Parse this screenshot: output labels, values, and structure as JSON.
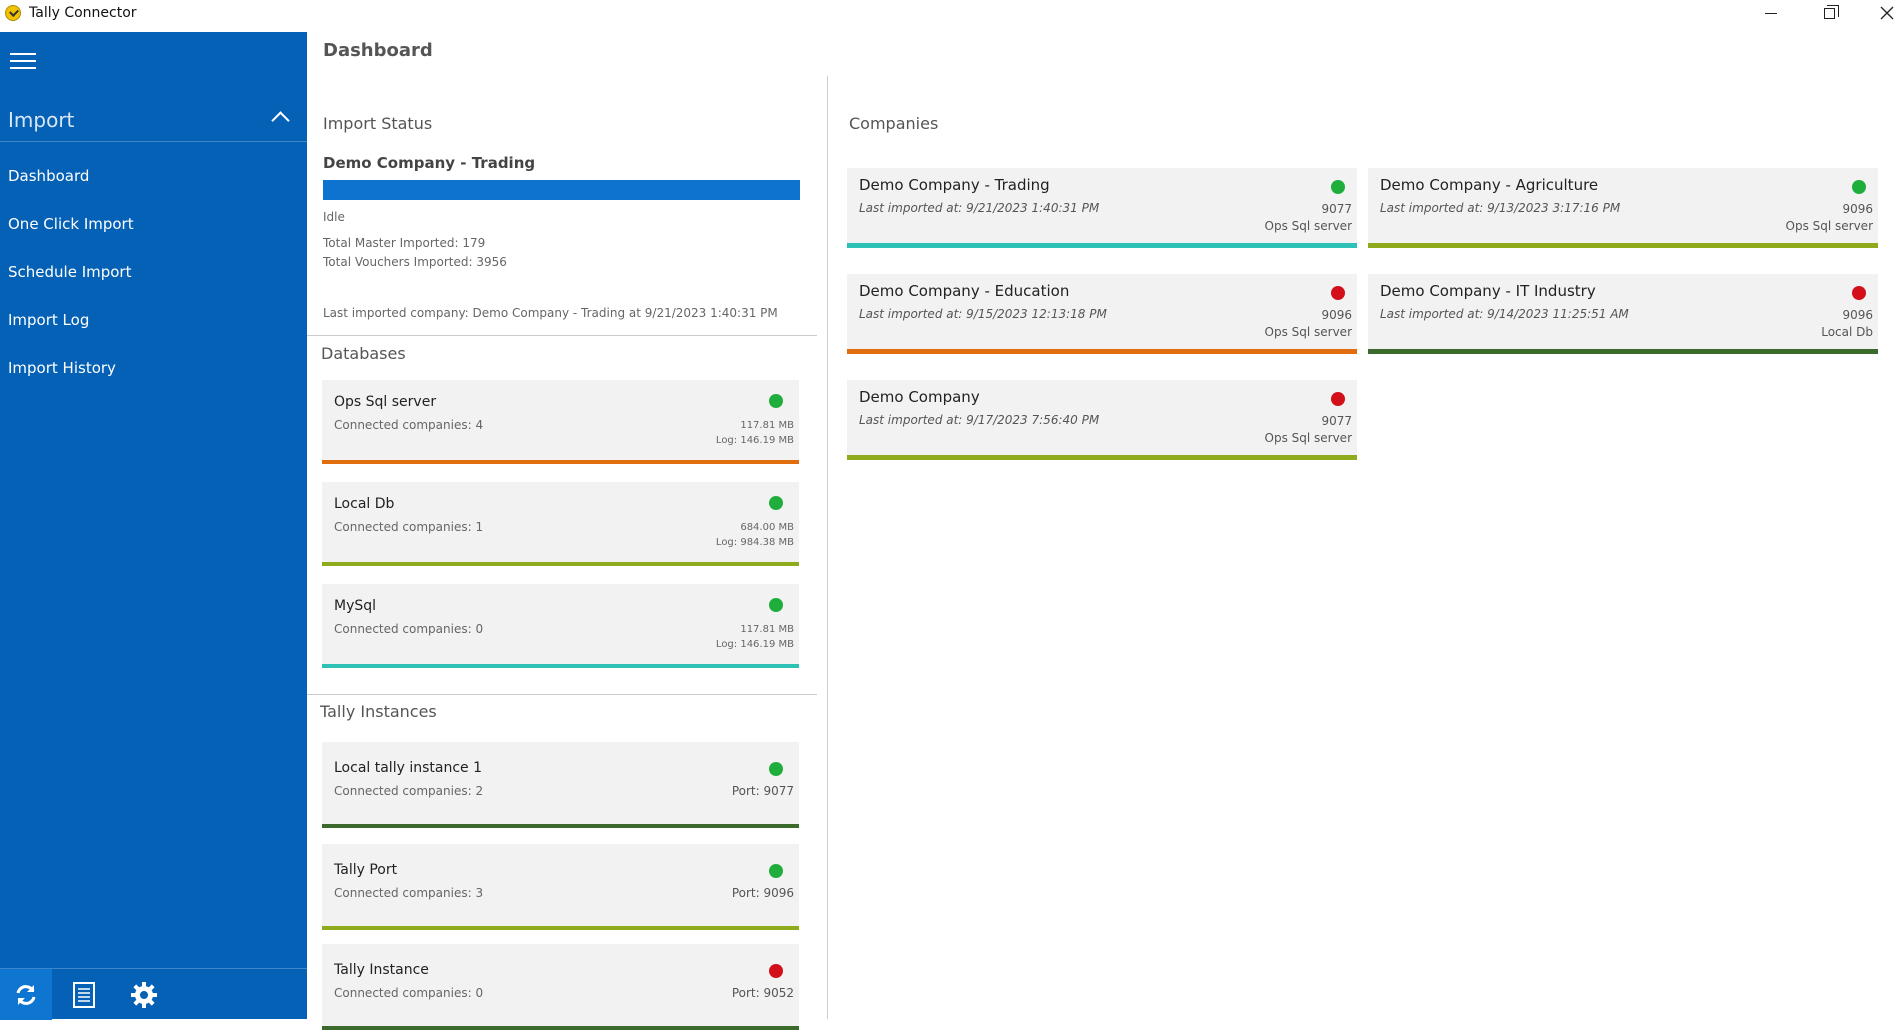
{
  "window": {
    "title": "Tally Connector"
  },
  "colors": {
    "sidebar": "#0561b5",
    "green": "#1fad3c",
    "red": "#d3101a",
    "teal": "#2ec1b6",
    "orange": "#e06d0e",
    "olive": "#8fab1d",
    "darkgreen": "#3c6a2c"
  },
  "sidebar": {
    "section": "Import",
    "items": [
      {
        "label": "Dashboard"
      },
      {
        "label": "One Click Import"
      },
      {
        "label": "Schedule Import"
      },
      {
        "label": "Import Log"
      },
      {
        "label": "Import History"
      }
    ],
    "bottom_icons": [
      "refresh-icon",
      "document-list-icon",
      "gear-icon"
    ]
  },
  "main": {
    "title": "Dashboard",
    "import_status": {
      "label": "Import Status",
      "company": "Demo Company - Trading",
      "progress": 1.0,
      "state": "Idle",
      "total_master": "Total Master Imported: 179",
      "total_vouchers": "Total Vouchers Imported: 3956",
      "last_imported": "Last imported company: Demo Company - Trading at 9/21/2023 1:40:31 PM"
    },
    "databases": {
      "label": "Databases",
      "items": [
        {
          "name": "Ops Sql server",
          "connected": "Connected companies: 4",
          "size": "117.81 MB",
          "log": "Log: 146.19 MB",
          "status": "green",
          "bar": "orange"
        },
        {
          "name": "Local Db",
          "connected": "Connected companies: 1",
          "size": "684.00 MB",
          "log": "Log: 984.38 MB",
          "status": "green",
          "bar": "olive"
        },
        {
          "name": "MySql",
          "connected": "Connected companies: 0",
          "size": "117.81 MB",
          "log": "Log: 146.19 MB",
          "status": "green",
          "bar": "teal"
        }
      ]
    },
    "tally_instances": {
      "label": "Tally Instances",
      "items": [
        {
          "name": "Local tally instance 1",
          "connected": "Connected companies: 2",
          "port": "Port: 9077",
          "status": "green",
          "bar": "darkgreen"
        },
        {
          "name": "Tally Port",
          "connected": "Connected companies: 3",
          "port": "Port: 9096",
          "status": "green",
          "bar": "olive"
        },
        {
          "name": "Tally Instance",
          "connected": "Connected companies: 0",
          "port": "Port: 9052",
          "status": "red",
          "bar": "darkgreen"
        }
      ]
    },
    "companies": {
      "label": "Companies",
      "items": [
        {
          "name": "Demo Company - Trading",
          "last": "Last imported at: 9/21/2023 1:40:31 PM",
          "port": "9077",
          "db": "Ops Sql server",
          "status": "green",
          "bar": "teal"
        },
        {
          "name": "Demo Company - Agriculture",
          "last": "Last imported at: 9/13/2023 3:17:16 PM",
          "port": "9096",
          "db": "Ops Sql server",
          "status": "green",
          "bar": "olive"
        },
        {
          "name": "Demo Company - Education",
          "last": "Last imported at: 9/15/2023 12:13:18 PM",
          "port": "9096",
          "db": "Ops Sql server",
          "status": "red",
          "bar": "orange"
        },
        {
          "name": "Demo Company - IT Industry",
          "last": "Last imported at: 9/14/2023 11:25:51 AM",
          "port": "9096",
          "db": "Local Db",
          "status": "red",
          "bar": "darkgreen"
        },
        {
          "name": "Demo Company",
          "last": "Last imported at: 9/17/2023 7:56:40 PM",
          "port": "9077",
          "db": "Ops Sql server",
          "status": "red",
          "bar": "olive"
        }
      ]
    }
  }
}
